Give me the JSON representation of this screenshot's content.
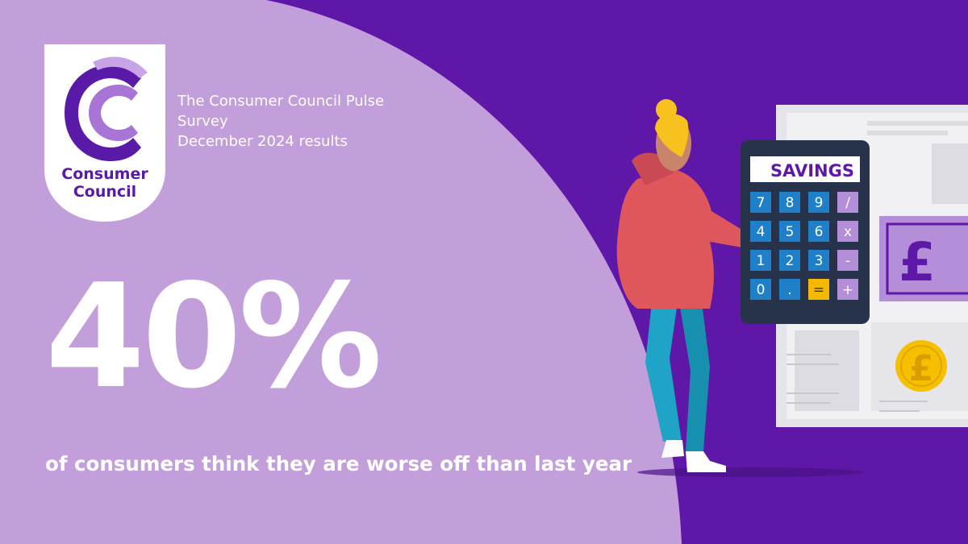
{
  "logo": {
    "line1": "Consumer",
    "line2": "Council"
  },
  "survey": {
    "line1": "The Consumer Council Pulse",
    "line2": "Survey",
    "line3": "December 2024 results"
  },
  "stat": {
    "value": "40%",
    "caption": "of consumers think they are worse off than last year"
  },
  "illustration": {
    "calculator_display": "SAVINGS",
    "keys": [
      "7",
      "8",
      "9",
      "/",
      "4",
      "5",
      "6",
      "x",
      "1",
      "2",
      "3",
      "-",
      "0",
      ".",
      "=",
      "+"
    ],
    "currency_symbol": "£"
  },
  "colors": {
    "light_purple": "#c29edb",
    "dark_purple": "#5e17a6",
    "logo_purple": "#5a1aa8",
    "calculator_body": "#26334a",
    "calc_key_blue": "#1f7fc8",
    "calc_key_purple": "#b48ed8",
    "calc_key_yellow": "#f5b800",
    "coin_yellow": "#f5c000",
    "jumper_red": "#e0565d",
    "jeans_teal": "#1fa3c6"
  }
}
